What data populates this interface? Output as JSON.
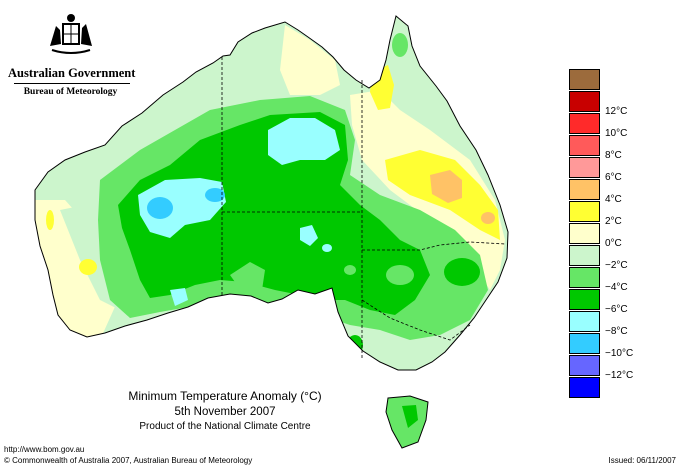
{
  "header": {
    "government": "Australian Government",
    "bureau": "Bureau of Meteorology"
  },
  "map": {
    "title": "Minimum Temperature Anomaly (°C)",
    "date": "5th November 2007",
    "product": "Product of the National Climate Centre"
  },
  "legend": {
    "items": [
      {
        "label": "",
        "color": "#9c6b3c"
      },
      {
        "label": "12°C",
        "color": "#c80000"
      },
      {
        "label": "10°C",
        "color": "#ff2a2a"
      },
      {
        "label": "8°C",
        "color": "#ff5a5a"
      },
      {
        "label": "6°C",
        "color": "#ff9999"
      },
      {
        "label": "4°C",
        "color": "#ffc266"
      },
      {
        "label": "2°C",
        "color": "#ffff33"
      },
      {
        "label": "0°C",
        "color": "#ffffcc"
      },
      {
        "label": "−2°C",
        "color": "#ccf5cc"
      },
      {
        "label": "−4°C",
        "color": "#66e666"
      },
      {
        "label": "−6°C",
        "color": "#00c800"
      },
      {
        "label": "−8°C",
        "color": "#99ffff"
      },
      {
        "label": "−10°C",
        "color": "#33ccff"
      },
      {
        "label": "−12°C",
        "color": "#6666ff"
      },
      {
        "label": "",
        "color": "#0000ff"
      }
    ]
  },
  "footer": {
    "url": "http://www.bom.gov.au",
    "copyright": "© Commonwealth of Australia 2007, Australian Bureau of Meteorology",
    "issued": "Issued: 06/11/2007"
  }
}
